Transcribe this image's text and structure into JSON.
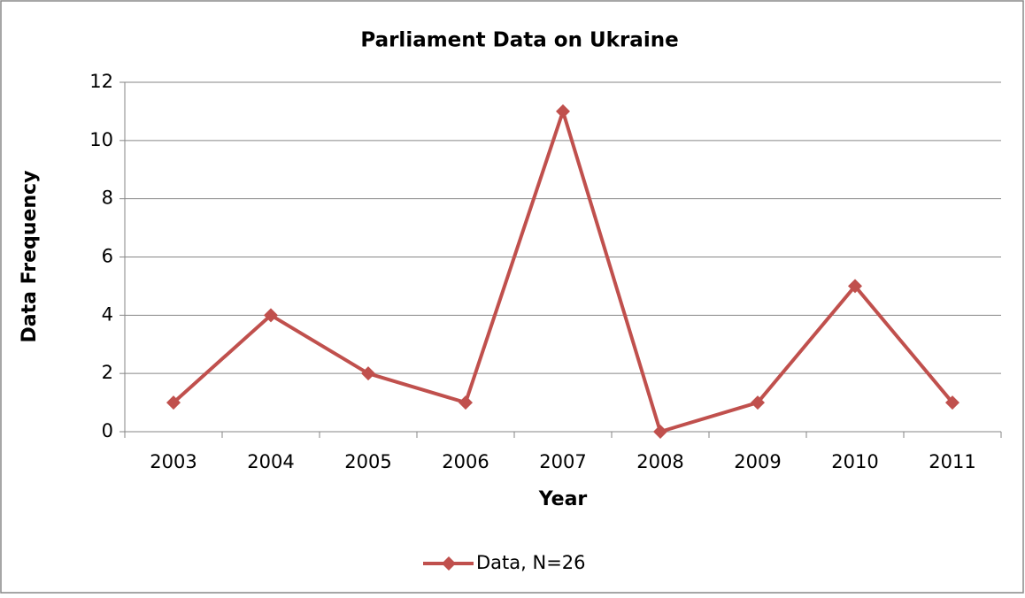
{
  "chart_data": {
    "type": "line",
    "title": "Parliament Data on Ukraine",
    "x_label": "Year",
    "y_label": "Data Frequency",
    "categories": [
      "2003",
      "2004",
      "2005",
      "2006",
      "2007",
      "2008",
      "2009",
      "2010",
      "2011"
    ],
    "series": [
      {
        "name": "Data, N=26",
        "color": "#c0504d",
        "values": [
          1,
          4,
          2,
          1,
          11,
          0,
          1,
          5,
          1
        ]
      }
    ],
    "ylim": [
      0,
      12
    ],
    "yticks": [
      0,
      2,
      4,
      6,
      8,
      10,
      12
    ],
    "grid": true,
    "legend": "bottom"
  }
}
